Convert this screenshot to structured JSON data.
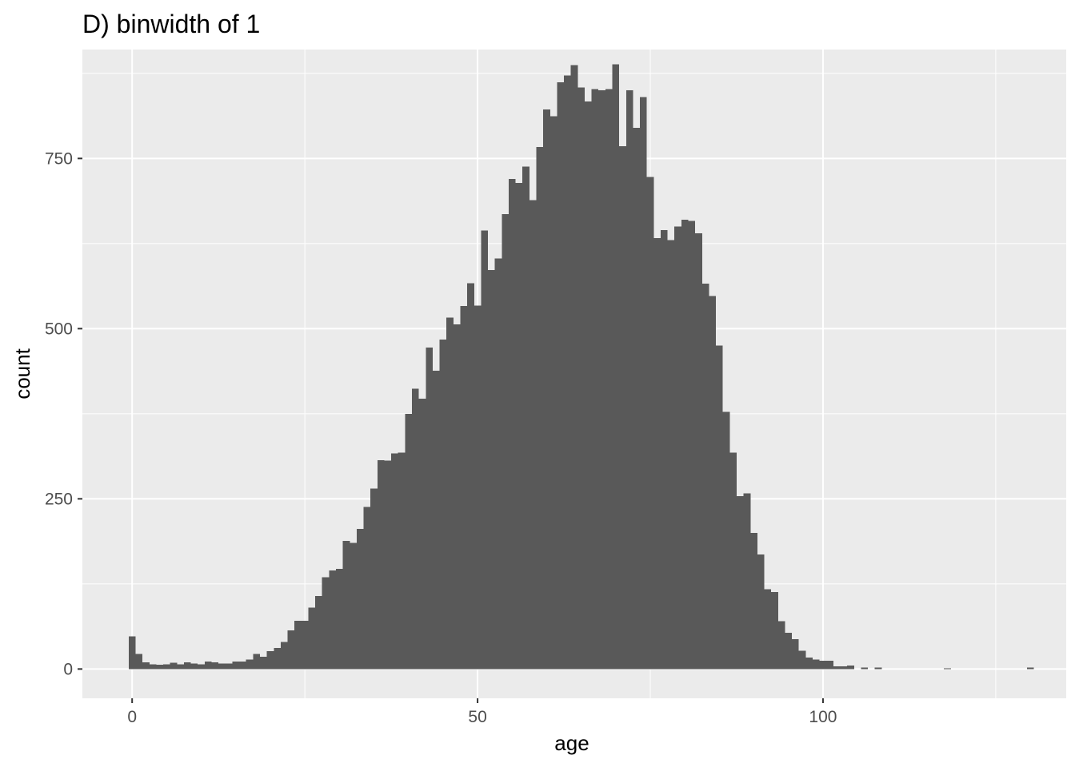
{
  "chart_data": {
    "type": "bar",
    "title": "D) binwidth of 1",
    "xlabel": "age",
    "ylabel": "count",
    "binwidth": 1,
    "xlim": [
      -7.2,
      135.2
    ],
    "ylim": [
      -43,
      910
    ],
    "x_ticks": [
      0,
      50,
      100
    ],
    "x_tick_labels": [
      "0",
      "50",
      "100"
    ],
    "y_ticks": [
      0,
      250,
      500,
      750
    ],
    "y_tick_labels": [
      "0",
      "250",
      "500",
      "750"
    ],
    "grid": true,
    "colors": {
      "panel": "#ebebeb",
      "grid": "#ffffff",
      "bars": "#595959",
      "ticks": "#333333"
    },
    "bins": [
      [
        0,
        48
      ],
      [
        1,
        22
      ],
      [
        2,
        10
      ],
      [
        3,
        7
      ],
      [
        4,
        6
      ],
      [
        5,
        7
      ],
      [
        6,
        9
      ],
      [
        7,
        7
      ],
      [
        8,
        10
      ],
      [
        9,
        8
      ],
      [
        10,
        7
      ],
      [
        11,
        11
      ],
      [
        12,
        10
      ],
      [
        13,
        8
      ],
      [
        14,
        8
      ],
      [
        15,
        11
      ],
      [
        16,
        11
      ],
      [
        17,
        14
      ],
      [
        18,
        22
      ],
      [
        19,
        18
      ],
      [
        20,
        26
      ],
      [
        21,
        31
      ],
      [
        22,
        40
      ],
      [
        23,
        57
      ],
      [
        24,
        71
      ],
      [
        25,
        71
      ],
      [
        26,
        90
      ],
      [
        27,
        107
      ],
      [
        28,
        135
      ],
      [
        29,
        145
      ],
      [
        30,
        147
      ],
      [
        31,
        188
      ],
      [
        32,
        185
      ],
      [
        33,
        206
      ],
      [
        34,
        238
      ],
      [
        35,
        265
      ],
      [
        36,
        307
      ],
      [
        37,
        306
      ],
      [
        38,
        317
      ],
      [
        39,
        318
      ],
      [
        40,
        375
      ],
      [
        41,
        412
      ],
      [
        42,
        397
      ],
      [
        43,
        472
      ],
      [
        44,
        438
      ],
      [
        45,
        484
      ],
      [
        46,
        516
      ],
      [
        47,
        506
      ],
      [
        48,
        533
      ],
      [
        49,
        567
      ],
      [
        50,
        534
      ],
      [
        51,
        644
      ],
      [
        52,
        586
      ],
      [
        53,
        603
      ],
      [
        54,
        668
      ],
      [
        55,
        720
      ],
      [
        56,
        714
      ],
      [
        57,
        738
      ],
      [
        58,
        689
      ],
      [
        59,
        767
      ],
      [
        60,
        822
      ],
      [
        61,
        812
      ],
      [
        62,
        862
      ],
      [
        63,
        872
      ],
      [
        64,
        887
      ],
      [
        65,
        854
      ],
      [
        66,
        834
      ],
      [
        67,
        852
      ],
      [
        68,
        850
      ],
      [
        69,
        852
      ],
      [
        70,
        888
      ],
      [
        71,
        768
      ],
      [
        72,
        850
      ],
      [
        73,
        795
      ],
      [
        74,
        840
      ],
      [
        75,
        723
      ],
      [
        76,
        633
      ],
      [
        77,
        645
      ],
      [
        78,
        630
      ],
      [
        79,
        650
      ],
      [
        80,
        660
      ],
      [
        81,
        658
      ],
      [
        82,
        640
      ],
      [
        83,
        566
      ],
      [
        84,
        548
      ],
      [
        85,
        475
      ],
      [
        86,
        378
      ],
      [
        87,
        318
      ],
      [
        88,
        254
      ],
      [
        89,
        258
      ],
      [
        90,
        200
      ],
      [
        91,
        168
      ],
      [
        92,
        117
      ],
      [
        93,
        113
      ],
      [
        94,
        70
      ],
      [
        95,
        53
      ],
      [
        96,
        44
      ],
      [
        97,
        27
      ],
      [
        98,
        17
      ],
      [
        99,
        14
      ],
      [
        100,
        12
      ],
      [
        101,
        12
      ],
      [
        102,
        4
      ],
      [
        103,
        4
      ],
      [
        104,
        5
      ],
      [
        106,
        2
      ],
      [
        108,
        2
      ],
      [
        118,
        1
      ],
      [
        130,
        2
      ]
    ]
  }
}
